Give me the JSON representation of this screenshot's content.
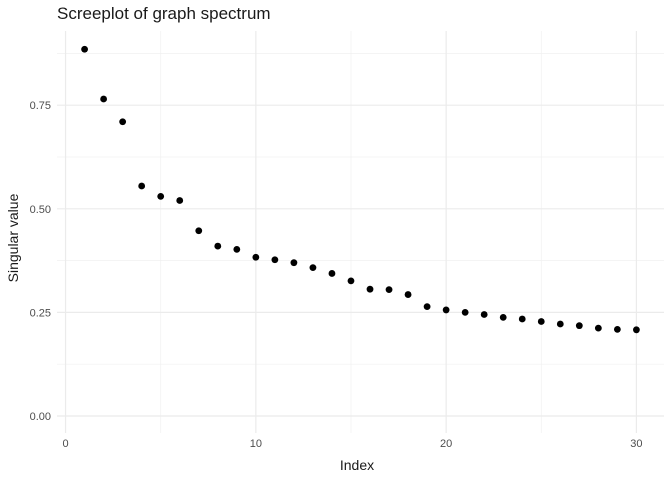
{
  "chart_data": {
    "type": "scatter",
    "title": "Screeplot of graph spectrum",
    "xlabel": "Index",
    "ylabel": "Singular value",
    "x": [
      1,
      2,
      3,
      4,
      5,
      6,
      7,
      8,
      9,
      10,
      11,
      12,
      13,
      14,
      15,
      16,
      17,
      18,
      19,
      20,
      21,
      22,
      23,
      24,
      25,
      26,
      27,
      28,
      29,
      30
    ],
    "y": [
      0.885,
      0.765,
      0.71,
      0.555,
      0.53,
      0.52,
      0.447,
      0.41,
      0.402,
      0.383,
      0.377,
      0.37,
      0.358,
      0.344,
      0.326,
      0.306,
      0.305,
      0.293,
      0.264,
      0.256,
      0.25,
      0.245,
      0.238,
      0.234,
      0.228,
      0.222,
      0.218,
      0.212,
      0.209,
      0.208
    ],
    "xlim": [
      -0.45,
      31.45
    ],
    "ylim": [
      -0.041,
      0.929
    ],
    "x_ticks": {
      "values": [
        0,
        10,
        20,
        30
      ],
      "labels": [
        "0",
        "10",
        "20",
        "30"
      ],
      "minor": [
        5,
        15,
        25
      ]
    },
    "y_ticks": {
      "values": [
        0,
        0.25,
        0.5,
        0.75
      ],
      "labels": [
        "0.00",
        "0.25",
        "0.50",
        "0.75"
      ],
      "minor": [
        0.125,
        0.375,
        0.625,
        0.875
      ]
    },
    "grid": true,
    "legend_position": "none",
    "colors": {
      "point": "#000000",
      "grid_major": "#EBEBEB",
      "grid_minor": "#F0F0F0",
      "tick_label": "#4D4D4D",
      "axis_title": "#1A1A1A",
      "title": "#1A1A1A",
      "background": "#FFFFFF"
    }
  }
}
